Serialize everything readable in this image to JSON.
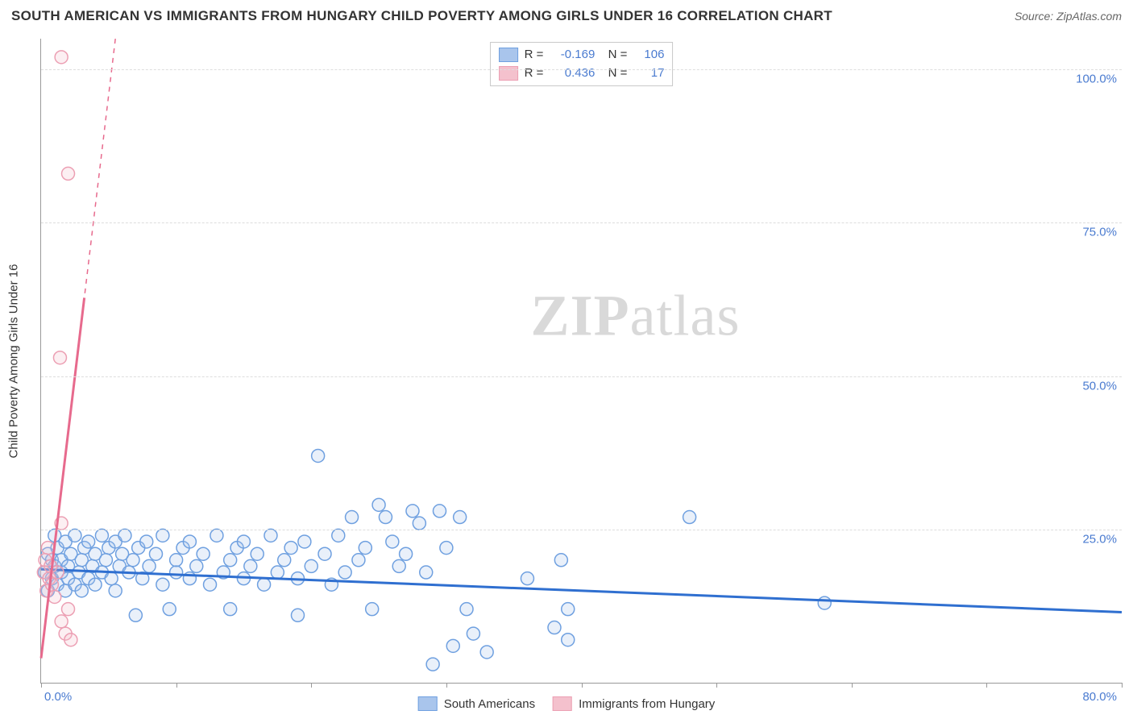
{
  "title": "SOUTH AMERICAN VS IMMIGRANTS FROM HUNGARY CHILD POVERTY AMONG GIRLS UNDER 16 CORRELATION CHART",
  "source_label": "Source: ZipAtlas.com",
  "watermark_zip": "ZIP",
  "watermark_atlas": "atlas",
  "chart": {
    "type": "scatter",
    "background_color": "#ffffff",
    "grid_color": "#dddddd",
    "axis_color": "#999999",
    "text_color": "#333333",
    "tick_label_color": "#4a7bd0",
    "yaxis_title": "Child Poverty Among Girls Under 16",
    "xlim": [
      0,
      80
    ],
    "ylim": [
      0,
      105
    ],
    "xticks": [
      0,
      10,
      20,
      30,
      40,
      50,
      60,
      70,
      80
    ],
    "xlabel_min": "0.0%",
    "xlabel_max": "80.0%",
    "yticks": [
      {
        "v": 25,
        "label": "25.0%"
      },
      {
        "v": 50,
        "label": "50.0%"
      },
      {
        "v": 75,
        "label": "75.0%"
      },
      {
        "v": 100,
        "label": "100.0%"
      }
    ],
    "marker_radius": 8,
    "marker_stroke_width": 1.5,
    "marker_fill_opacity": 0.25,
    "trend_line_width_solid": 3,
    "trend_line_width_dash": 1.5,
    "series": [
      {
        "name": "South Americans",
        "color_fill": "#a9c5ec",
        "color_stroke": "#6fa0e0",
        "trend_color": "#2f6fd0",
        "R": "-0.169",
        "N": "106",
        "trend": {
          "x1": 0,
          "y1": 18.5,
          "x2": 80,
          "y2": 11.5,
          "dash": false
        },
        "points": [
          [
            0.3,
            18
          ],
          [
            0.5,
            21
          ],
          [
            0.5,
            15
          ],
          [
            0.8,
            20
          ],
          [
            0.8,
            17
          ],
          [
            1.0,
            24
          ],
          [
            1.0,
            19
          ],
          [
            1.2,
            16
          ],
          [
            1.2,
            22
          ],
          [
            1.5,
            18
          ],
          [
            1.5,
            20
          ],
          [
            1.8,
            15
          ],
          [
            1.8,
            23
          ],
          [
            2.0,
            17
          ],
          [
            2.0,
            19
          ],
          [
            2.2,
            21
          ],
          [
            2.5,
            16
          ],
          [
            2.5,
            24
          ],
          [
            2.8,
            18
          ],
          [
            3.0,
            20
          ],
          [
            3.0,
            15
          ],
          [
            3.2,
            22
          ],
          [
            3.5,
            17
          ],
          [
            3.5,
            23
          ],
          [
            3.8,
            19
          ],
          [
            4.0,
            21
          ],
          [
            4.0,
            16
          ],
          [
            4.5,
            24
          ],
          [
            4.5,
            18
          ],
          [
            4.8,
            20
          ],
          [
            5.0,
            22
          ],
          [
            5.2,
            17
          ],
          [
            5.5,
            23
          ],
          [
            5.5,
            15
          ],
          [
            5.8,
            19
          ],
          [
            6.0,
            21
          ],
          [
            6.2,
            24
          ],
          [
            6.5,
            18
          ],
          [
            6.8,
            20
          ],
          [
            7.0,
            11
          ],
          [
            7.2,
            22
          ],
          [
            7.5,
            17
          ],
          [
            7.8,
            23
          ],
          [
            8.0,
            19
          ],
          [
            8.5,
            21
          ],
          [
            9.0,
            16
          ],
          [
            9.0,
            24
          ],
          [
            9.5,
            12
          ],
          [
            10,
            18
          ],
          [
            10,
            20
          ],
          [
            10.5,
            22
          ],
          [
            11,
            17
          ],
          [
            11,
            23
          ],
          [
            11.5,
            19
          ],
          [
            12,
            21
          ],
          [
            12.5,
            16
          ],
          [
            13,
            24
          ],
          [
            13.5,
            18
          ],
          [
            14,
            12
          ],
          [
            14,
            20
          ],
          [
            14.5,
            22
          ],
          [
            15,
            17
          ],
          [
            15,
            23
          ],
          [
            15.5,
            19
          ],
          [
            16,
            21
          ],
          [
            16.5,
            16
          ],
          [
            17,
            24
          ],
          [
            17.5,
            18
          ],
          [
            18,
            20
          ],
          [
            18.5,
            22
          ],
          [
            19,
            11
          ],
          [
            19,
            17
          ],
          [
            19.5,
            23
          ],
          [
            20,
            19
          ],
          [
            20.5,
            37
          ],
          [
            21,
            21
          ],
          [
            21.5,
            16
          ],
          [
            22,
            24
          ],
          [
            22.5,
            18
          ],
          [
            23,
            27
          ],
          [
            23.5,
            20
          ],
          [
            24,
            22
          ],
          [
            24.5,
            12
          ],
          [
            25,
            29
          ],
          [
            25.5,
            27
          ],
          [
            26,
            23
          ],
          [
            26.5,
            19
          ],
          [
            27,
            21
          ],
          [
            27.5,
            28
          ],
          [
            28,
            26
          ],
          [
            28.5,
            18
          ],
          [
            29,
            3
          ],
          [
            29.5,
            28
          ],
          [
            30,
            22
          ],
          [
            30.5,
            6
          ],
          [
            31,
            27
          ],
          [
            31.5,
            12
          ],
          [
            32,
            8
          ],
          [
            33,
            5
          ],
          [
            36,
            17
          ],
          [
            38,
            9
          ],
          [
            38.5,
            20
          ],
          [
            39,
            12
          ],
          [
            39,
            7
          ],
          [
            48,
            27
          ],
          [
            58,
            13
          ]
        ]
      },
      {
        "name": "Immigrants from Hungary",
        "color_fill": "#f4c1cd",
        "color_stroke": "#ec9fb3",
        "trend_color": "#e76a8d",
        "R": "0.436",
        "N": "17",
        "trend": {
          "x1": 0,
          "y1": 4,
          "x2": 5.5,
          "y2": 105,
          "dash": true,
          "solid_until_x": 3.2
        },
        "points": [
          [
            0.2,
            18
          ],
          [
            0.3,
            20
          ],
          [
            1.5,
            102
          ],
          [
            0.4,
            15
          ],
          [
            0.5,
            22
          ],
          [
            0.6,
            17
          ],
          [
            0.7,
            19
          ],
          [
            0.8,
            16
          ],
          [
            1.0,
            14
          ],
          [
            1.2,
            18
          ],
          [
            1.5,
            26
          ],
          [
            1.8,
            8
          ],
          [
            1.4,
            53
          ],
          [
            1.5,
            10
          ],
          [
            2.0,
            12
          ],
          [
            2.2,
            7
          ],
          [
            2.0,
            83
          ]
        ]
      }
    ]
  },
  "stats_box": {
    "rows": [
      {
        "swatch_fill": "#a9c5ec",
        "swatch_stroke": "#6fa0e0",
        "R": "-0.169",
        "N": "106"
      },
      {
        "swatch_fill": "#f4c1cd",
        "swatch_stroke": "#ec9fb3",
        "R": "0.436",
        "N": "17"
      }
    ]
  },
  "legend": [
    {
      "swatch_fill": "#a9c5ec",
      "swatch_stroke": "#6fa0e0",
      "label": "South Americans"
    },
    {
      "swatch_fill": "#f4c1cd",
      "swatch_stroke": "#ec9fb3",
      "label": "Immigrants from Hungary"
    }
  ]
}
